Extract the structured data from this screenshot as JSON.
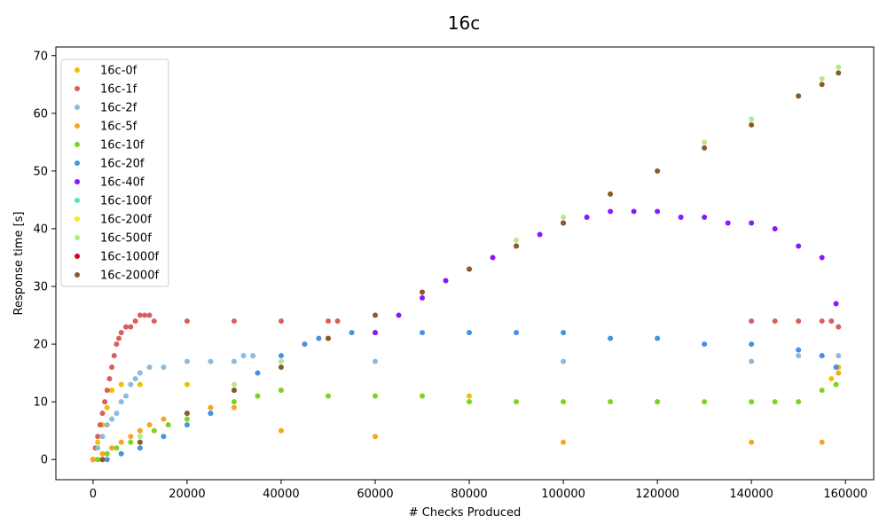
{
  "chart_data": {
    "type": "scatter",
    "title": "16c",
    "xlabel": "# Checks Produced",
    "ylabel": "Response time [s]",
    "xlim": [
      -7900,
      166000
    ],
    "ylim": [
      -3.5,
      71.5
    ],
    "xticks": [
      0,
      20000,
      40000,
      60000,
      80000,
      100000,
      120000,
      140000,
      160000
    ],
    "yticks": [
      0,
      10,
      20,
      30,
      40,
      50,
      60,
      70
    ],
    "grid": false,
    "legend_position": "top-left",
    "series": [
      {
        "name": "16c-0f",
        "color": "#f0c000",
        "x": [
          0,
          1000,
          2000,
          3000,
          4000,
          6000,
          10000,
          20000,
          40000,
          80000,
          120000,
          157000,
          158500
        ],
        "y": [
          0,
          3,
          6,
          9,
          12,
          13,
          13,
          13,
          12,
          11,
          10,
          14,
          16
        ]
      },
      {
        "name": "16c-1f",
        "color": "#d95f5f",
        "x": [
          0,
          500,
          1000,
          1500,
          2000,
          2500,
          3000,
          3500,
          4000,
          4500,
          5000,
          5500,
          6000,
          7000,
          8000,
          9000,
          10000,
          11000,
          12000,
          13000,
          20000,
          30000,
          40000,
          50000,
          52000,
          140000,
          145000,
          150000,
          155000,
          157000,
          158500
        ],
        "y": [
          0,
          2,
          4,
          6,
          8,
          10,
          12,
          14,
          16,
          18,
          20,
          21,
          22,
          23,
          23,
          24,
          25,
          25,
          25,
          24,
          24,
          24,
          24,
          24,
          24,
          24,
          24,
          24,
          24,
          24,
          23
        ]
      },
      {
        "name": "16c-2f",
        "color": "#8bbbdc",
        "x": [
          0,
          1000,
          2000,
          3000,
          4000,
          5000,
          6000,
          7000,
          8000,
          9000,
          10000,
          12000,
          15000,
          20000,
          25000,
          30000,
          32000,
          34000,
          40000,
          60000,
          100000,
          140000,
          150000,
          155000,
          158500
        ],
        "y": [
          0,
          2,
          4,
          6,
          7,
          8,
          10,
          11,
          13,
          14,
          15,
          16,
          16,
          17,
          17,
          17,
          18,
          18,
          17,
          17,
          17,
          17,
          18,
          18,
          18
        ]
      },
      {
        "name": "16c-5f",
        "color": "#f5a623",
        "x": [
          0,
          2000,
          4000,
          6000,
          8000,
          10000,
          12000,
          15000,
          20000,
          25000,
          30000,
          40000,
          60000,
          100000,
          140000,
          155000,
          158500
        ],
        "y": [
          0,
          1,
          2,
          3,
          4,
          5,
          6,
          7,
          8,
          9,
          9,
          5,
          4,
          3,
          3,
          3,
          15
        ]
      },
      {
        "name": "16c-10f",
        "color": "#7ed321",
        "x": [
          1000,
          3000,
          5000,
          8000,
          10000,
          13000,
          16000,
          20000,
          25000,
          30000,
          35000,
          40000,
          50000,
          60000,
          70000,
          80000,
          90000,
          100000,
          110000,
          120000,
          130000,
          140000,
          145000,
          150000,
          155000,
          158000
        ],
        "y": [
          0,
          1,
          2,
          3,
          4,
          5,
          6,
          7,
          8,
          10,
          11,
          12,
          11,
          11,
          11,
          10,
          10,
          10,
          10,
          10,
          10,
          10,
          10,
          10,
          12,
          13
        ]
      },
      {
        "name": "16c-20f",
        "color": "#4a90e2",
        "x": [
          3000,
          6000,
          10000,
          15000,
          20000,
          25000,
          30000,
          35000,
          40000,
          45000,
          48000,
          50000,
          55000,
          60000,
          70000,
          80000,
          90000,
          100000,
          110000,
          120000,
          130000,
          140000,
          150000,
          155000,
          158000
        ],
        "y": [
          0,
          1,
          2,
          4,
          6,
          8,
          12,
          15,
          18,
          20,
          21,
          21,
          22,
          22,
          22,
          22,
          22,
          22,
          21,
          21,
          20,
          20,
          19,
          18,
          16
        ]
      },
      {
        "name": "16c-40f",
        "color": "#8b17ff",
        "x": [
          60000,
          65000,
          70000,
          75000,
          80000,
          85000,
          90000,
          95000,
          100000,
          105000,
          110000,
          115000,
          120000,
          125000,
          130000,
          135000,
          140000,
          145000,
          150000,
          155000,
          158000
        ],
        "y": [
          22,
          25,
          28,
          31,
          33,
          35,
          37,
          39,
          41,
          42,
          43,
          43,
          43,
          42,
          42,
          41,
          41,
          40,
          37,
          35,
          27
        ]
      },
      {
        "name": "16c-100f",
        "color": "#50e3c2",
        "x": [],
        "y": []
      },
      {
        "name": "16c-200f",
        "color": "#f8e71c",
        "x": [],
        "y": []
      },
      {
        "name": "16c-500f",
        "color": "#b8e986",
        "x": [
          2000,
          10000,
          20000,
          30000,
          40000,
          50000,
          60000,
          70000,
          80000,
          90000,
          100000,
          110000,
          120000,
          130000,
          140000,
          150000,
          155000,
          158500
        ],
        "y": [
          0,
          4,
          8,
          13,
          17,
          21,
          25,
          29,
          33,
          38,
          42,
          46,
          50,
          55,
          59,
          63,
          66,
          68
        ]
      },
      {
        "name": "16c-1000f",
        "color": "#d0021b",
        "x": [],
        "y": []
      },
      {
        "name": "16c-2000f",
        "color": "#8b5a2b",
        "x": [
          2000,
          10000,
          20000,
          30000,
          40000,
          50000,
          60000,
          70000,
          80000,
          90000,
          100000,
          110000,
          120000,
          130000,
          140000,
          150000,
          155000,
          158500
        ],
        "y": [
          0,
          3,
          8,
          12,
          16,
          21,
          25,
          29,
          33,
          37,
          41,
          46,
          50,
          54,
          58,
          63,
          65,
          67
        ]
      }
    ]
  }
}
